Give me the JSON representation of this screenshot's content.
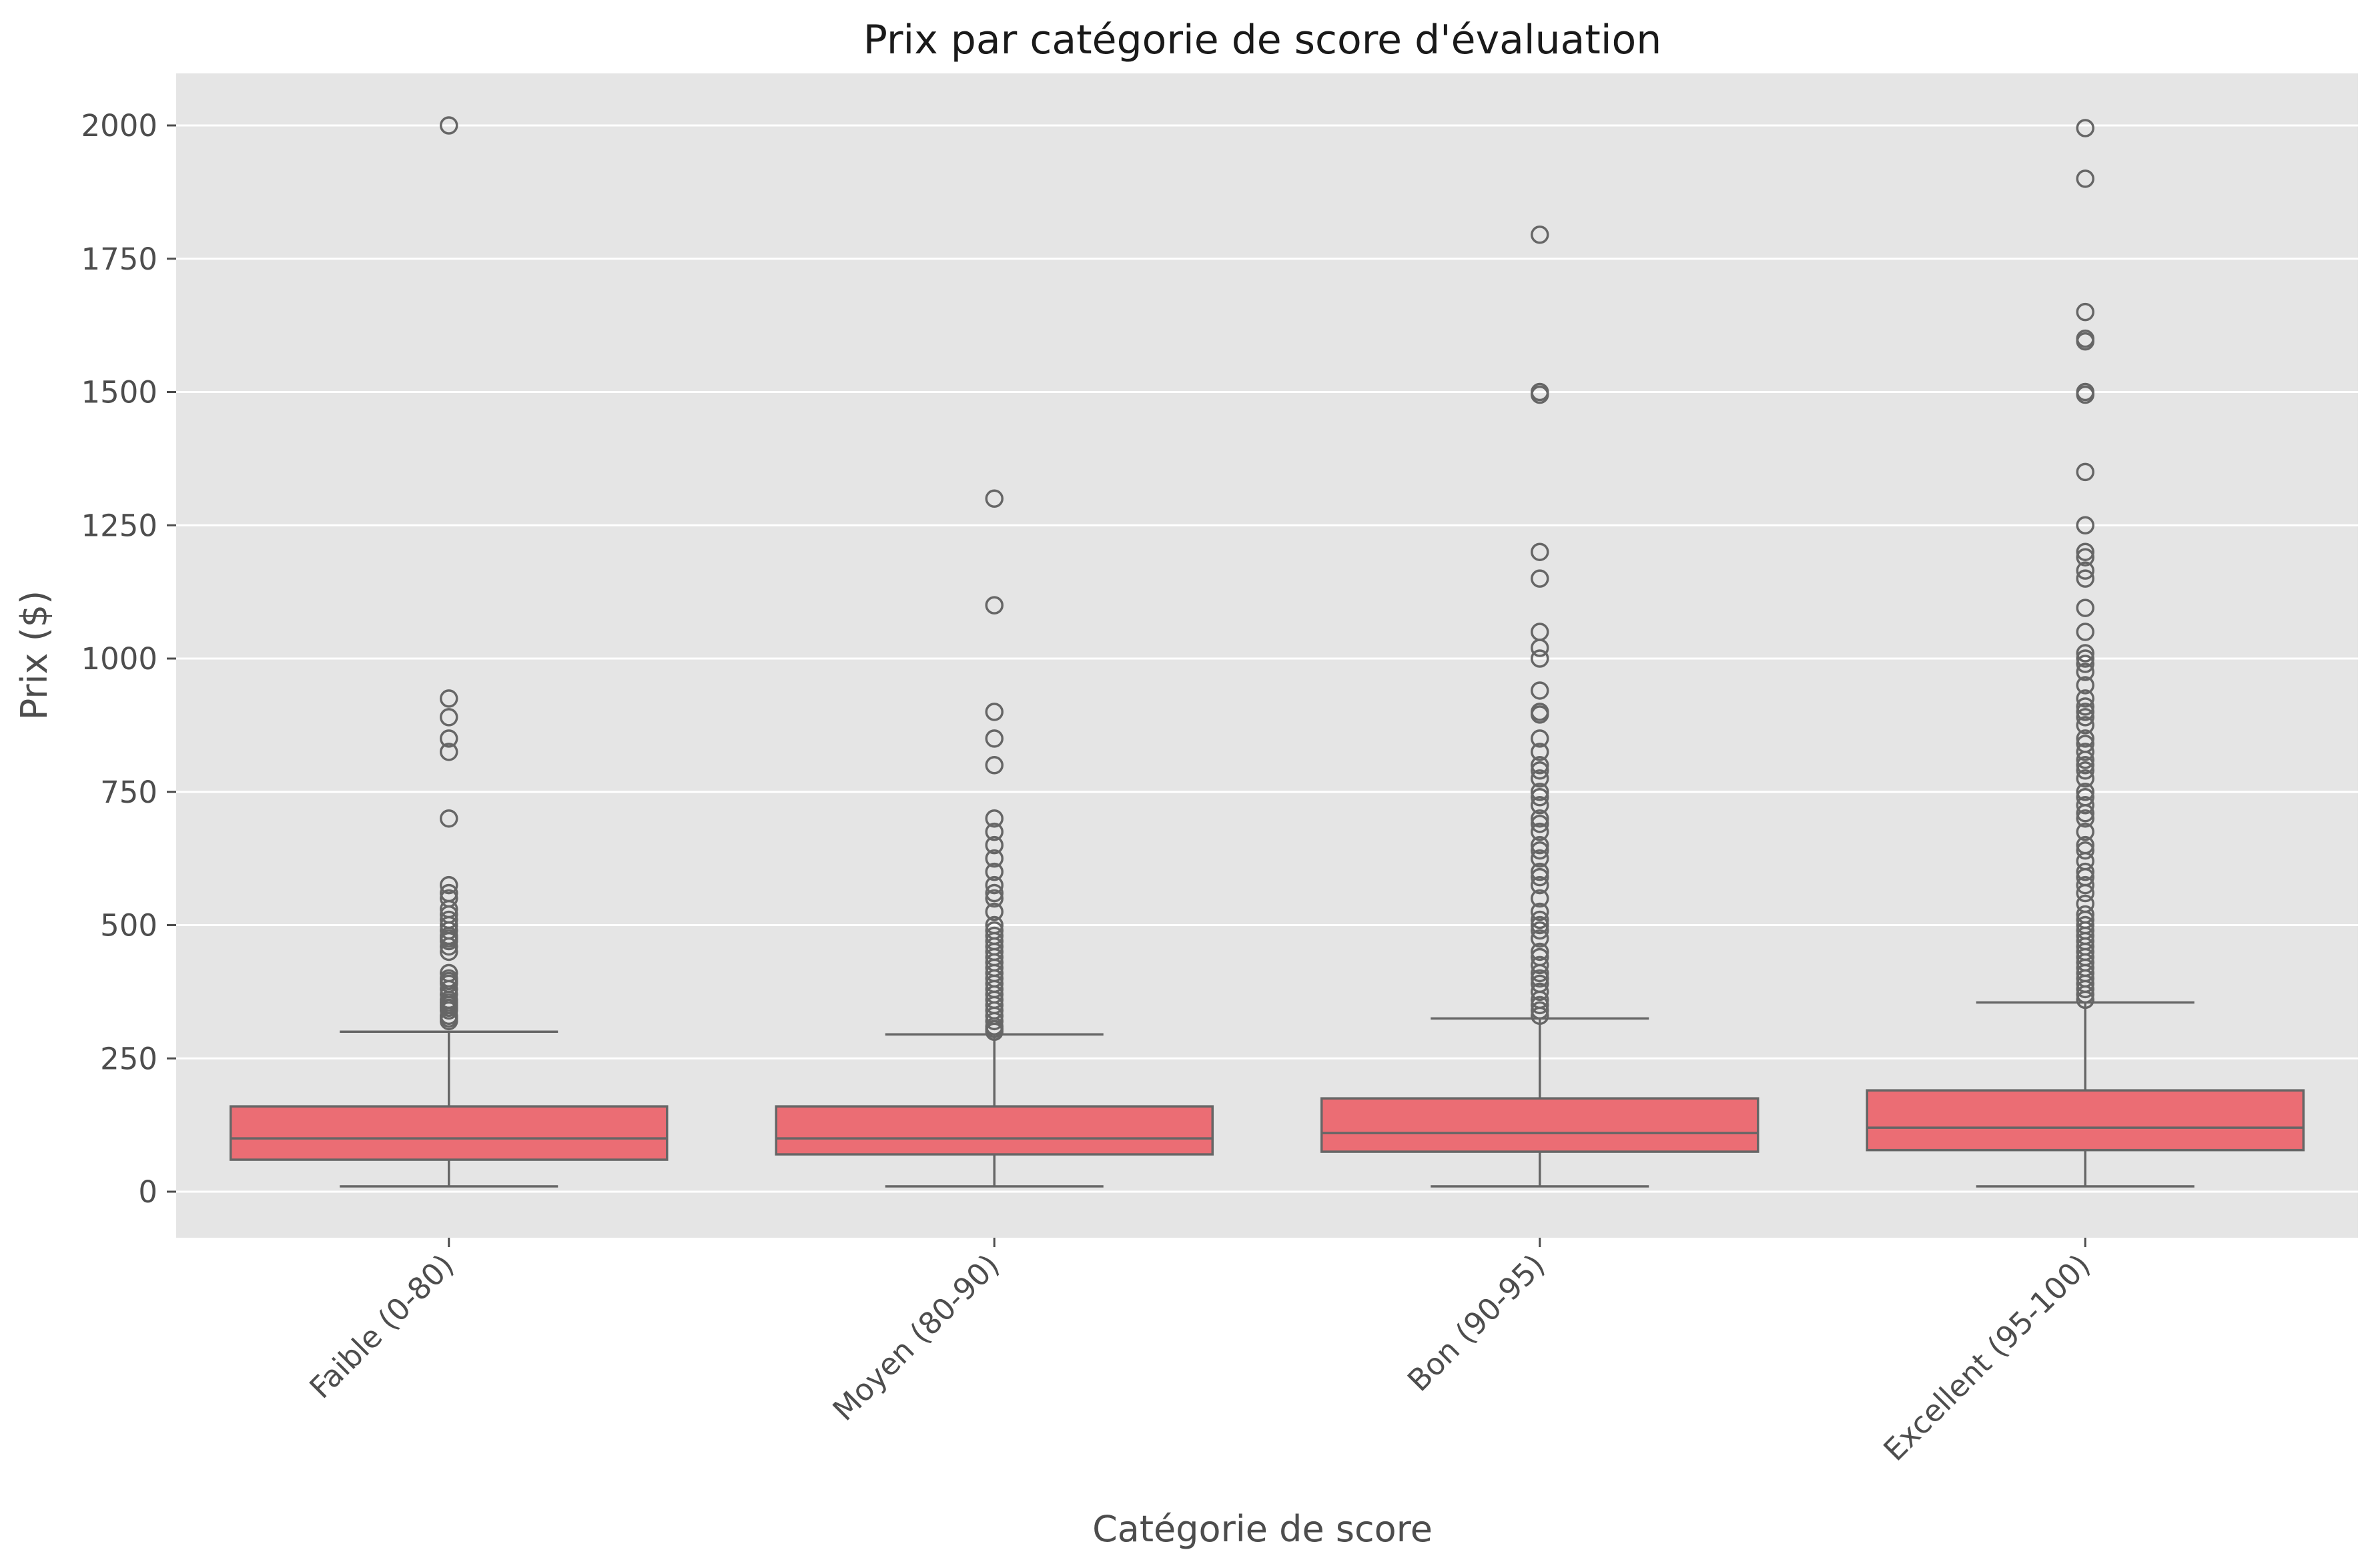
{
  "chart_data": {
    "type": "box",
    "title": "Prix par catégorie de score d'évaluation",
    "xlabel": "Catégorie de score",
    "ylabel": "Prix ($)",
    "ylim": [
      -85,
      2100
    ],
    "yticks": [
      0,
      250,
      500,
      750,
      1000,
      1250,
      1500,
      1750,
      2000
    ],
    "grid": "y",
    "colors": {
      "box_fill": "#EB6D74",
      "line": "#666666",
      "plot_bg": "#E5E5E5"
    },
    "categories": [
      "Faible (0-80)",
      "Moyen (80-90)",
      "Bon (90-95)",
      "Excellent (95-100)"
    ],
    "boxes": [
      {
        "category": "Faible (0-80)",
        "whisker_low": 10,
        "q1": 60,
        "median": 100,
        "q3": 160,
        "whisker_high": 300,
        "outliers": [
          320,
          325,
          330,
          340,
          345,
          350,
          355,
          360,
          370,
          380,
          390,
          395,
          400,
          410,
          450,
          460,
          470,
          475,
          480,
          490,
          500,
          510,
          520,
          530,
          550,
          560,
          575,
          700,
          825,
          850,
          890,
          925,
          2000
        ]
      },
      {
        "category": "Moyen (80-90)",
        "whisker_low": 10,
        "q1": 70,
        "median": 100,
        "q3": 160,
        "whisker_high": 295,
        "outliers": [
          300,
          305,
          310,
          320,
          330,
          340,
          350,
          360,
          370,
          380,
          390,
          400,
          410,
          420,
          430,
          440,
          450,
          460,
          470,
          480,
          490,
          500,
          525,
          550,
          560,
          575,
          600,
          625,
          650,
          675,
          700,
          800,
          850,
          900,
          1100,
          1300
        ]
      },
      {
        "category": "Bon (90-95)",
        "whisker_low": 10,
        "q1": 75,
        "median": 110,
        "q3": 175,
        "whisker_high": 325,
        "outliers": [
          330,
          340,
          350,
          360,
          375,
          390,
          400,
          410,
          425,
          440,
          450,
          475,
          490,
          500,
          510,
          525,
          550,
          575,
          590,
          600,
          625,
          640,
          650,
          675,
          690,
          700,
          725,
          740,
          750,
          775,
          790,
          800,
          825,
          850,
          895,
          900,
          940,
          1000,
          1020,
          1050,
          1150,
          1200,
          1495,
          1500,
          1795
        ]
      },
      {
        "category": "Excellent (95-100)",
        "whisker_low": 10,
        "q1": 78,
        "median": 120,
        "q3": 190,
        "whisker_high": 355,
        "outliers": [
          360,
          370,
          380,
          390,
          400,
          410,
          420,
          430,
          440,
          450,
          460,
          470,
          480,
          490,
          500,
          510,
          520,
          540,
          560,
          575,
          590,
          600,
          620,
          640,
          650,
          675,
          700,
          710,
          725,
          740,
          750,
          775,
          790,
          800,
          810,
          825,
          840,
          850,
          875,
          890,
          900,
          910,
          925,
          950,
          975,
          990,
          1000,
          1010,
          1050,
          1095,
          1150,
          1165,
          1190,
          1200,
          1250,
          1350,
          1495,
          1500,
          1595,
          1600,
          1650,
          1900,
          1995
        ]
      }
    ]
  }
}
